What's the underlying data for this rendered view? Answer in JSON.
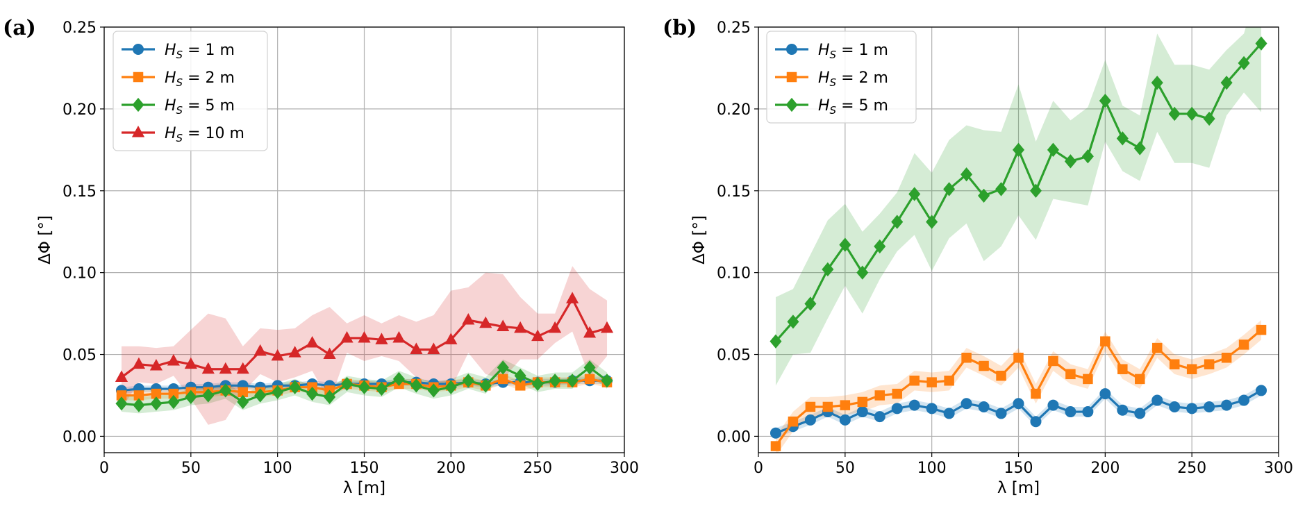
{
  "chart_data": [
    {
      "type": "line",
      "panel_label": "(a)",
      "xlabel": "λ [m]",
      "ylabel": "ΔΦ [°]",
      "xlim": [
        0,
        300
      ],
      "ylim": [
        -0.01,
        0.25
      ],
      "xticks": [
        "0",
        "50",
        "100",
        "150",
        "200",
        "250",
        "300"
      ],
      "yticks": [
        "0.00",
        "0.05",
        "0.10",
        "0.15",
        "0.20",
        "0.25"
      ],
      "grid": true,
      "legend_position": "top-left",
      "x": [
        10,
        20,
        30,
        40,
        50,
        60,
        70,
        80,
        90,
        100,
        110,
        120,
        130,
        140,
        150,
        160,
        170,
        180,
        190,
        200,
        210,
        220,
        230,
        240,
        250,
        260,
        270,
        280,
        290
      ],
      "series": [
        {
          "name": "H_S = 1 m",
          "legend": {
            "var": "H",
            "sub": "S",
            "rest": " = 1 m"
          },
          "color": "#1f77b4",
          "marker": "circle",
          "values": [
            0.028,
            0.029,
            0.029,
            0.029,
            0.03,
            0.03,
            0.031,
            0.031,
            0.03,
            0.031,
            0.031,
            0.032,
            0.031,
            0.032,
            0.032,
            0.032,
            0.033,
            0.033,
            0.032,
            0.032,
            0.033,
            0.032,
            0.033,
            0.033,
            0.033,
            0.033,
            0.034,
            0.034,
            0.034
          ],
          "std": [
            0.002,
            0.002,
            0.002,
            0.002,
            0.002,
            0.002,
            0.002,
            0.002,
            0.002,
            0.002,
            0.002,
            0.002,
            0.002,
            0.002,
            0.002,
            0.002,
            0.002,
            0.002,
            0.002,
            0.002,
            0.002,
            0.002,
            0.002,
            0.002,
            0.002,
            0.002,
            0.002,
            0.002,
            0.002
          ]
        },
        {
          "name": "H_S = 2 m",
          "legend": {
            "var": "H",
            "sub": "S",
            "rest": " = 2 m"
          },
          "color": "#ff7f0e",
          "marker": "square",
          "values": [
            0.025,
            0.025,
            0.026,
            0.026,
            0.027,
            0.027,
            0.028,
            0.027,
            0.027,
            0.028,
            0.03,
            0.03,
            0.028,
            0.032,
            0.031,
            0.03,
            0.032,
            0.032,
            0.03,
            0.031,
            0.033,
            0.031,
            0.035,
            0.031,
            0.033,
            0.033,
            0.033,
            0.035,
            0.033
          ],
          "std": [
            0.003,
            0.003,
            0.003,
            0.003,
            0.003,
            0.003,
            0.003,
            0.003,
            0.003,
            0.003,
            0.003,
            0.003,
            0.003,
            0.003,
            0.003,
            0.003,
            0.003,
            0.003,
            0.003,
            0.003,
            0.003,
            0.003,
            0.003,
            0.003,
            0.003,
            0.003,
            0.003,
            0.003,
            0.003
          ]
        },
        {
          "name": "H_S = 5 m",
          "legend": {
            "var": "H",
            "sub": "S",
            "rest": " = 5 m"
          },
          "color": "#2ca02c",
          "marker": "diamond",
          "values": [
            0.02,
            0.019,
            0.02,
            0.021,
            0.024,
            0.025,
            0.028,
            0.021,
            0.025,
            0.027,
            0.03,
            0.026,
            0.024,
            0.032,
            0.03,
            0.029,
            0.035,
            0.031,
            0.028,
            0.03,
            0.034,
            0.031,
            0.042,
            0.037,
            0.032,
            0.034,
            0.034,
            0.042,
            0.034
          ],
          "std": [
            0.005,
            0.005,
            0.005,
            0.005,
            0.005,
            0.005,
            0.005,
            0.005,
            0.005,
            0.005,
            0.005,
            0.005,
            0.005,
            0.005,
            0.005,
            0.005,
            0.005,
            0.005,
            0.005,
            0.005,
            0.005,
            0.005,
            0.005,
            0.005,
            0.005,
            0.005,
            0.005,
            0.005,
            0.005
          ]
        },
        {
          "name": "H_S = 10 m",
          "legend": {
            "var": "H",
            "sub": "S",
            "rest": " = 10 m"
          },
          "color": "#d62728",
          "marker": "triangle",
          "values": [
            0.036,
            0.044,
            0.043,
            0.046,
            0.044,
            0.041,
            0.041,
            0.041,
            0.052,
            0.049,
            0.051,
            0.057,
            0.05,
            0.06,
            0.06,
            0.059,
            0.06,
            0.053,
            0.053,
            0.059,
            0.071,
            0.069,
            0.067,
            0.066,
            0.061,
            0.066,
            0.084,
            0.063,
            0.066
          ],
          "std": [
            0.019,
            0.011,
            0.011,
            0.009,
            0.021,
            0.034,
            0.031,
            0.014,
            0.014,
            0.016,
            0.015,
            0.017,
            0.029,
            0.009,
            0.014,
            0.01,
            0.014,
            0.017,
            0.021,
            0.03,
            0.02,
            0.031,
            0.032,
            0.019,
            0.014,
            0.009,
            0.02,
            0.027,
            0.017
          ]
        }
      ]
    },
    {
      "type": "line",
      "panel_label": "(b)",
      "xlabel": "λ [m]",
      "ylabel": "ΔΦ [°]",
      "xlim": [
        0,
        300
      ],
      "ylim": [
        -0.01,
        0.25
      ],
      "xticks": [
        "0",
        "50",
        "100",
        "150",
        "200",
        "250",
        "300"
      ],
      "yticks": [
        "0.00",
        "0.05",
        "0.10",
        "0.15",
        "0.20",
        "0.25"
      ],
      "grid": true,
      "legend_position": "top-left",
      "x": [
        10,
        20,
        30,
        40,
        50,
        60,
        70,
        80,
        90,
        100,
        110,
        120,
        130,
        140,
        150,
        160,
        170,
        180,
        190,
        200,
        210,
        220,
        230,
        240,
        250,
        260,
        270,
        280,
        290
      ],
      "series": [
        {
          "name": "H_S = 1 m",
          "legend": {
            "var": "H",
            "sub": "S",
            "rest": " = 1 m"
          },
          "color": "#1f77b4",
          "marker": "circle",
          "values": [
            0.002,
            0.006,
            0.01,
            0.015,
            0.01,
            0.015,
            0.012,
            0.017,
            0.019,
            0.017,
            0.014,
            0.02,
            0.018,
            0.014,
            0.02,
            0.009,
            0.019,
            0.015,
            0.015,
            0.026,
            0.016,
            0.014,
            0.022,
            0.018,
            0.017,
            0.018,
            0.019,
            0.022,
            0.028
          ],
          "std": [
            0.003,
            0.003,
            0.003,
            0.003,
            0.003,
            0.003,
            0.003,
            0.003,
            0.003,
            0.003,
            0.003,
            0.003,
            0.003,
            0.003,
            0.003,
            0.003,
            0.003,
            0.003,
            0.003,
            0.003,
            0.003,
            0.003,
            0.003,
            0.003,
            0.003,
            0.003,
            0.003,
            0.003,
            0.003
          ]
        },
        {
          "name": "H_S = 2 m",
          "legend": {
            "var": "H",
            "sub": "S",
            "rest": " = 2 m"
          },
          "color": "#ff7f0e",
          "marker": "square",
          "values": [
            -0.006,
            0.009,
            0.018,
            0.018,
            0.019,
            0.021,
            0.025,
            0.026,
            0.034,
            0.033,
            0.034,
            0.048,
            0.043,
            0.037,
            0.048,
            0.026,
            0.046,
            0.038,
            0.035,
            0.058,
            0.041,
            0.035,
            0.054,
            0.044,
            0.041,
            0.044,
            0.048,
            0.056,
            0.065
          ],
          "std": [
            0.006,
            0.006,
            0.006,
            0.006,
            0.006,
            0.006,
            0.006,
            0.006,
            0.006,
            0.006,
            0.006,
            0.006,
            0.006,
            0.006,
            0.006,
            0.006,
            0.006,
            0.006,
            0.006,
            0.006,
            0.006,
            0.006,
            0.006,
            0.006,
            0.006,
            0.006,
            0.006,
            0.006,
            0.006
          ]
        },
        {
          "name": "H_S = 5 m",
          "legend": {
            "var": "H",
            "sub": "S",
            "rest": " = 5 m"
          },
          "color": "#2ca02c",
          "marker": "diamond",
          "values": [
            0.058,
            0.07,
            0.081,
            0.102,
            0.117,
            0.1,
            0.116,
            0.131,
            0.148,
            0.131,
            0.151,
            0.16,
            0.147,
            0.151,
            0.175,
            0.15,
            0.175,
            0.168,
            0.171,
            0.205,
            0.182,
            0.176,
            0.216,
            0.197,
            0.197,
            0.194,
            0.216,
            0.228,
            0.24
          ],
          "std": [
            0.027,
            0.02,
            0.03,
            0.03,
            0.025,
            0.025,
            0.02,
            0.018,
            0.025,
            0.03,
            0.03,
            0.03,
            0.04,
            0.035,
            0.04,
            0.03,
            0.03,
            0.025,
            0.03,
            0.025,
            0.02,
            0.02,
            0.03,
            0.03,
            0.03,
            0.03,
            0.02,
            0.018,
            0.042
          ]
        }
      ]
    }
  ]
}
